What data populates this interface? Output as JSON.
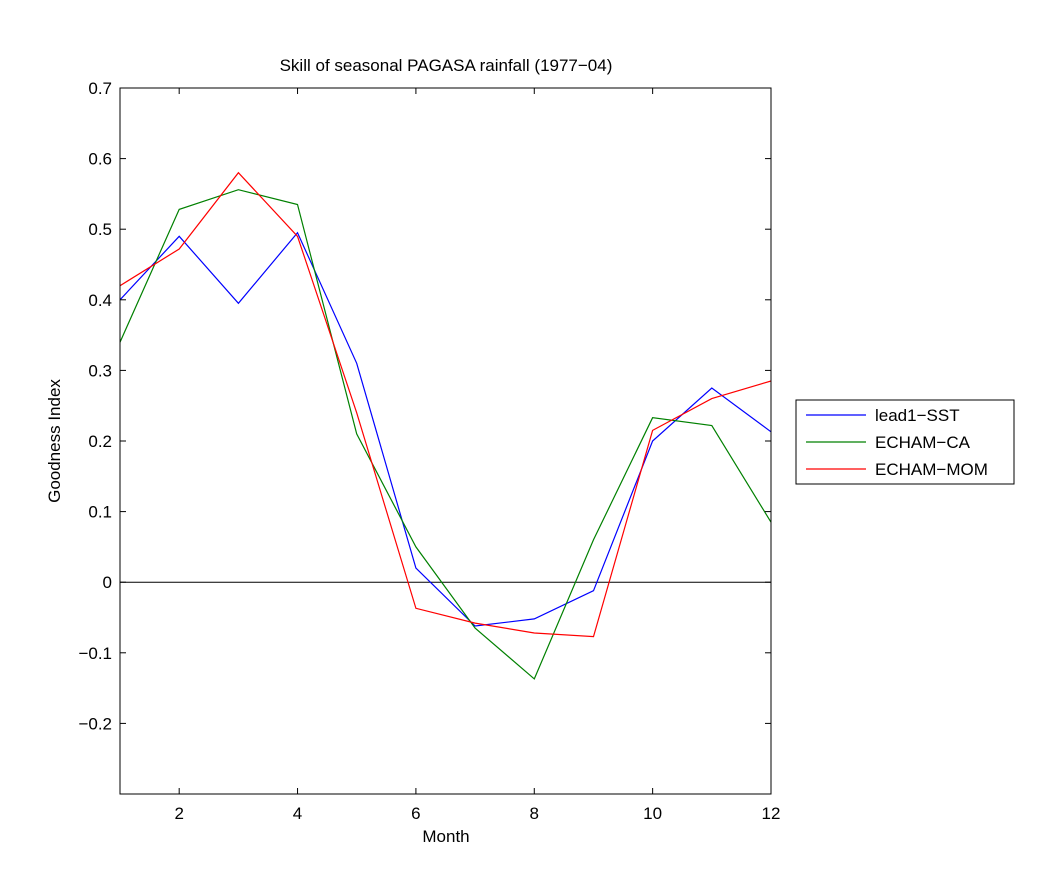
{
  "chart_data": {
    "type": "line",
    "title": "Skill of seasonal PAGASA rainfall (1977−04)",
    "xlabel": "Month",
    "ylabel": "Goodness Index",
    "xlim": [
      1,
      12
    ],
    "ylim": [
      -0.3,
      0.7
    ],
    "xticks": [
      2,
      4,
      6,
      8,
      10,
      12
    ],
    "yticks": [
      -0.2,
      -0.1,
      0,
      0.1,
      0.2,
      0.3,
      0.4,
      0.5,
      0.6,
      0.7
    ],
    "ytick_labels": [
      "−0.2",
      "−0.1",
      "0",
      "0.1",
      "0.2",
      "0.3",
      "0.4",
      "0.5",
      "0.6",
      "0.7"
    ],
    "grid": false,
    "zero_line": true,
    "legend_position": "outside-right",
    "x": [
      1,
      2,
      3,
      4,
      5,
      6,
      7,
      8,
      9,
      10,
      11,
      12
    ],
    "series": [
      {
        "name": "lead1−SST",
        "color": "#0000ff",
        "values": [
          0.4,
          0.49,
          0.395,
          0.495,
          0.31,
          0.02,
          -0.062,
          -0.052,
          -0.012,
          0.2,
          0.275,
          0.213
        ]
      },
      {
        "name": "ECHAM−CA",
        "color": "#008000",
        "values": [
          0.34,
          0.528,
          0.556,
          0.535,
          0.21,
          0.05,
          -0.065,
          -0.137,
          0.06,
          0.233,
          0.222,
          0.085
        ]
      },
      {
        "name": "ECHAM−MOM",
        "color": "#ff0000",
        "values": [
          0.42,
          0.472,
          0.58,
          0.49,
          0.24,
          -0.037,
          -0.058,
          -0.072,
          -0.077,
          0.215,
          0.26,
          0.285
        ]
      }
    ]
  }
}
